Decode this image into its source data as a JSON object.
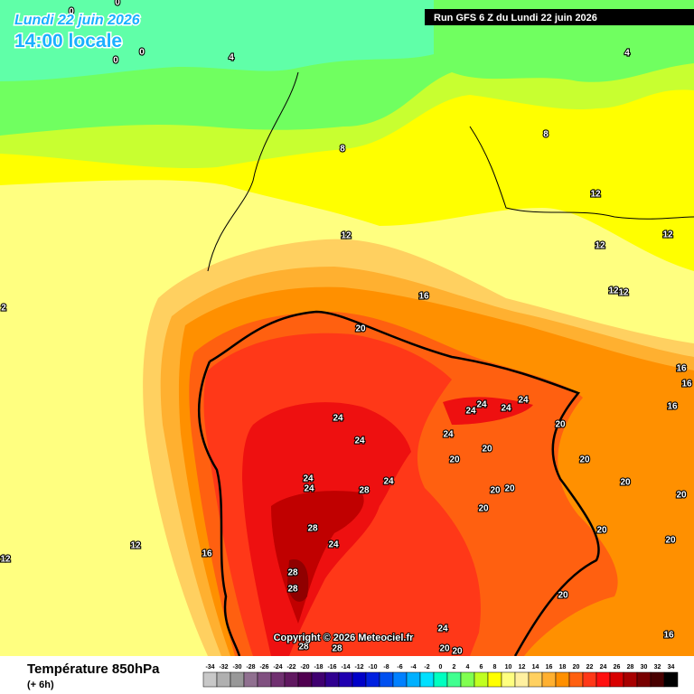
{
  "header": {
    "date": "Lundi 22 juin 2026",
    "time": "14:00 locale",
    "run": "Run GFS 6 Z du Lundi 22 juin 2026"
  },
  "map": {
    "copyright": "Copyright © 2026 Meteociel.fr",
    "contour_labels": [
      0,
      0,
      0,
      0,
      4,
      4,
      8,
      8,
      12,
      12,
      12,
      12,
      12,
      12,
      2,
      16,
      16,
      16,
      16,
      16,
      12,
      12,
      20,
      20,
      20,
      20,
      20,
      20,
      20,
      20,
      20,
      20,
      20,
      20,
      20,
      20,
      20,
      24,
      24,
      24,
      24,
      24,
      24,
      24,
      24,
      24,
      24,
      24,
      24,
      28,
      28,
      28,
      28,
      28,
      28,
      16
    ]
  },
  "footer": {
    "title": "Température 850hPa",
    "lead": "(+ 6h)"
  },
  "legend": {
    "values": [
      -34,
      -32,
      -30,
      -28,
      -26,
      -24,
      -22,
      -20,
      -18,
      -16,
      -14,
      -12,
      -10,
      -8,
      -6,
      -4,
      -2,
      0,
      2,
      4,
      6,
      8,
      10,
      12,
      14,
      16,
      18,
      20,
      22,
      24,
      26,
      28,
      30,
      32,
      34
    ],
    "colors": [
      "#c8c8c8",
      "#b0b0b0",
      "#989898",
      "#907090",
      "#805080",
      "#703070",
      "#601860",
      "#500050",
      "#400070",
      "#300090",
      "#2000b0",
      "#0000c8",
      "#0020e0",
      "#0050f0",
      "#0080ff",
      "#00b0ff",
      "#00e0ff",
      "#00ffc0",
      "#40ff90",
      "#80ff50",
      "#c0ff20",
      "#ffff00",
      "#ffff80",
      "#fff0a0",
      "#ffd060",
      "#ffb030",
      "#ff9000",
      "#ff6010",
      "#ff3818",
      "#ff1010",
      "#d80000",
      "#a80000",
      "#780000",
      "#480000",
      "#000000"
    ]
  }
}
